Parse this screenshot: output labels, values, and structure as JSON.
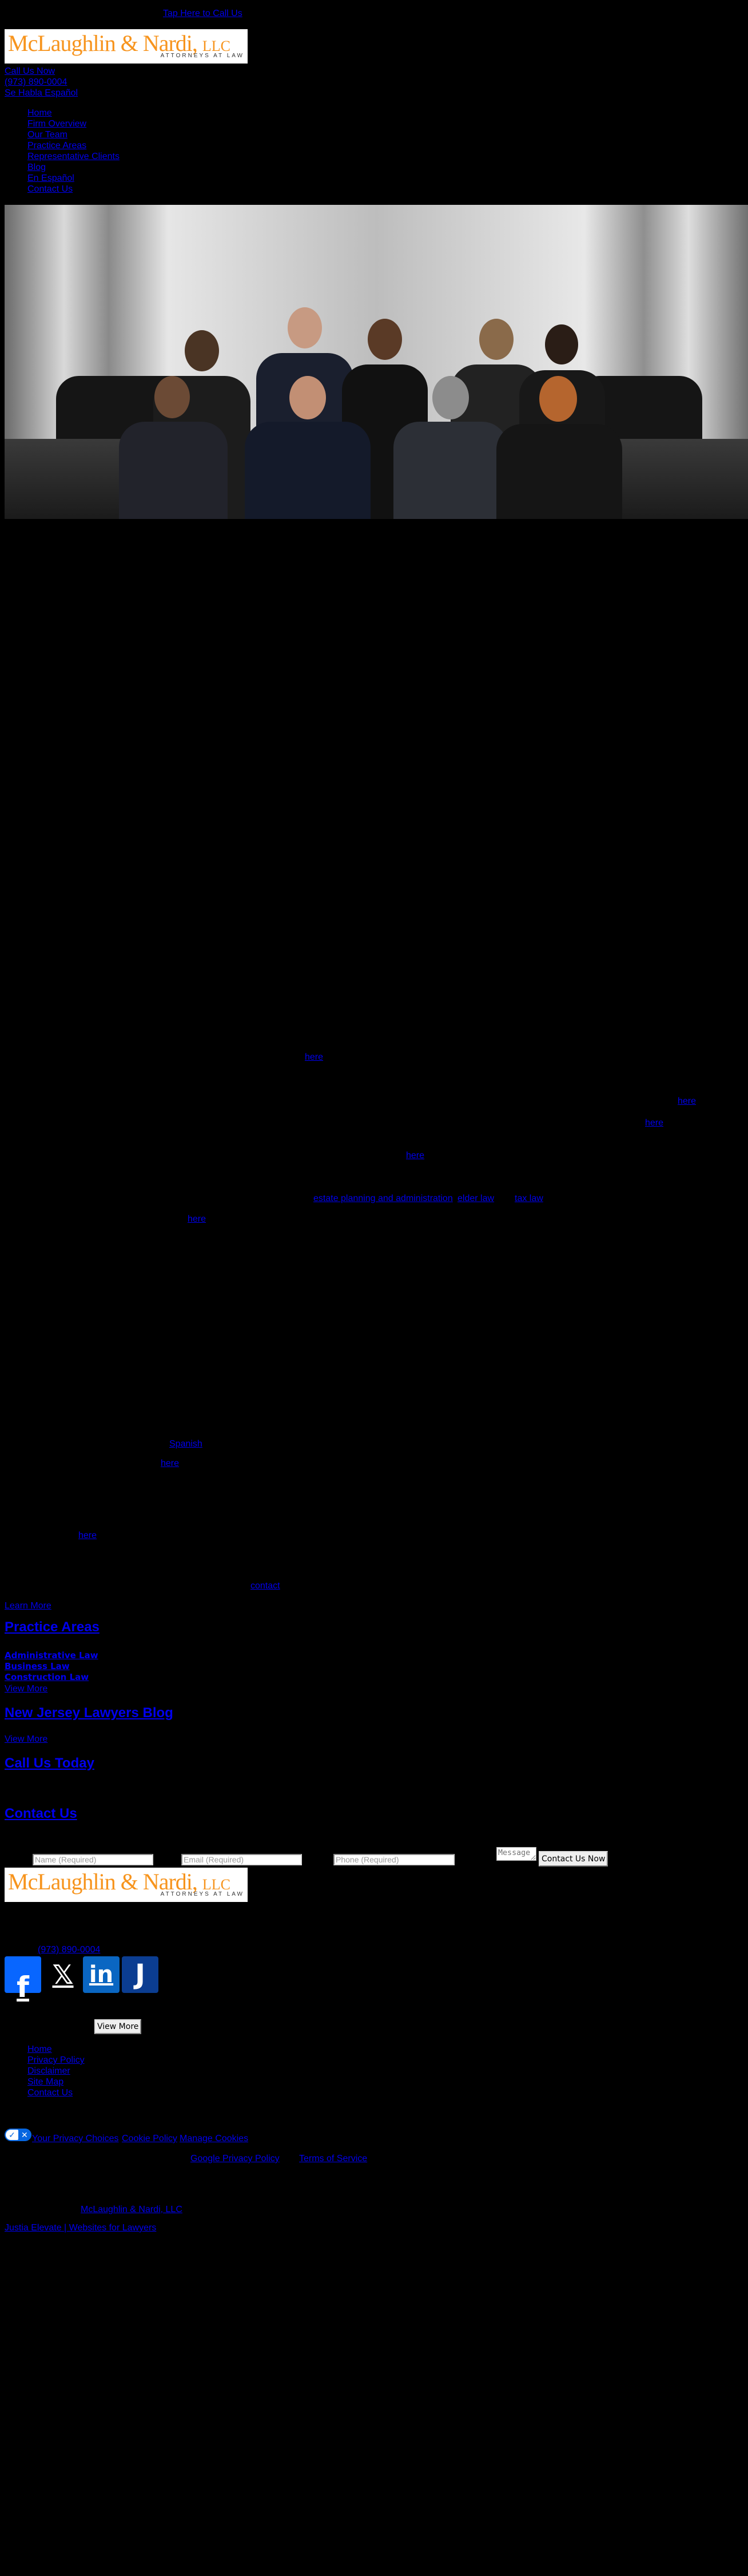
{
  "header": {
    "tap_to_call": "Tap Here to Call Us",
    "logo": {
      "name": "McLaughlin & Nardi,",
      "suffix": "LLC",
      "tagline": "ATTORNEYS AT LAW"
    },
    "call_us_now": "Call Us Now",
    "phone": "(973) 890-0004",
    "spanish": "Se Habla Español"
  },
  "nav": {
    "items": [
      "Home",
      "Firm Overview",
      "Our Team",
      "Practice Areas",
      "Representative Clients",
      "Blog",
      "En Español",
      "Contact Us"
    ]
  },
  "body_links": {
    "here_1": "here",
    "here_2": "here",
    "here_3": "here",
    "here_4": "here",
    "estate_planning": "estate planning and administration",
    "elder_law": "elder law",
    "tax_law": "tax law",
    "here_5": "here",
    "spanish": "Spanish",
    "here_6": "here",
    "here_7": "here",
    "contact": "contact",
    "learn_more": "Learn More"
  },
  "practice_areas": {
    "heading": "Practice Areas",
    "items": [
      "Administrative Law",
      "Business Law",
      "Construction Law"
    ],
    "view_more": "View More"
  },
  "blog": {
    "heading": "New Jersey Lawyers Blog",
    "view_more": "View More"
  },
  "call_today": {
    "heading": "Call Us Today"
  },
  "contact_form": {
    "heading": "Contact Us",
    "name_placeholder": "Name (Required)",
    "email_placeholder": "Email (Required)",
    "phone_placeholder": "Phone (Required)",
    "message_placeholder": "Message",
    "submit": "Contact Us Now"
  },
  "footer": {
    "logo": {
      "name": "McLaughlin & Nardi,",
      "suffix": "LLC",
      "tagline": "ATTORNEYS AT LAW"
    },
    "phone": "(973) 890-0004",
    "social": [
      {
        "icon": "facebook-icon",
        "glyph": "f",
        "color": "#0866ff"
      },
      {
        "icon": "x-icon",
        "glyph": "𝕏",
        "color": "#000000"
      },
      {
        "icon": "linkedin-icon",
        "glyph": "in",
        "color": "#0a66c2"
      },
      {
        "icon": "justia-icon",
        "glyph": "J",
        "color": "#0b3d91"
      }
    ],
    "view_more": "View More",
    "nav": [
      "Home",
      "Privacy Policy",
      "Disclaimer",
      "Site Map",
      "Contact Us"
    ],
    "privacy_choices": "Your Privacy Choices",
    "cookie_policy": "Cookie Policy",
    "manage_cookies": "Manage Cookies",
    "google_privacy": "Google Privacy Policy",
    "terms": "Terms of Service",
    "firm_link": "McLaughlin & Nardi, LLC",
    "justia": "Justia Elevate | Websites for Lawyers"
  }
}
